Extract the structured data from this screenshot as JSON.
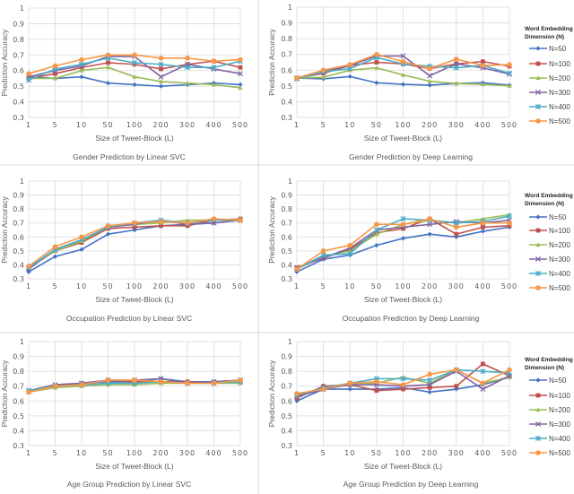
{
  "colors": {
    "N=50": "#4472C4",
    "N=100": "#C0504D",
    "N=200": "#9BBB59",
    "N=300": "#8064A2",
    "N=400": "#4BACC6",
    "N=500": "#F79646"
  },
  "markers": {
    "N=50": "diamond",
    "N=100": "square",
    "N=200": "triangle",
    "N=300": "x",
    "N=400": "asterisk",
    "N=500": "circle"
  },
  "chart_data": [
    {
      "type": "line",
      "title": "Gender Prediction by Linear SVC",
      "xlabel": "Size of Tweet-Block (L)",
      "ylabel": "Prediction Accuracy",
      "categories": [
        "1",
        "5",
        "10",
        "50",
        "100",
        "200",
        "300",
        "400",
        "500"
      ],
      "ylim": [
        0.3,
        1
      ],
      "yticks": [
        "0.3",
        "0.4",
        "0.5",
        "0.6",
        "0.7",
        "0.8",
        "0.9",
        "1"
      ],
      "grid": true,
      "legend": "none",
      "series": [
        {
          "name": "N=50",
          "values": [
            0.56,
            0.55,
            0.56,
            0.52,
            0.51,
            0.5,
            0.51,
            0.52,
            0.51
          ]
        },
        {
          "name": "N=100",
          "values": [
            0.55,
            0.58,
            0.62,
            0.65,
            0.64,
            0.61,
            0.64,
            0.66,
            0.62
          ]
        },
        {
          "name": "N=200",
          "values": [
            0.55,
            0.55,
            0.6,
            0.62,
            0.56,
            0.53,
            0.52,
            0.51,
            0.49
          ]
        },
        {
          "name": "N=300",
          "values": [
            0.56,
            0.6,
            0.63,
            0.69,
            0.69,
            0.56,
            0.64,
            0.61,
            0.58
          ]
        },
        {
          "name": "N=400",
          "values": [
            0.54,
            0.61,
            0.64,
            0.68,
            0.65,
            0.64,
            0.62,
            0.62,
            0.66
          ]
        },
        {
          "name": "N=500",
          "values": [
            0.58,
            0.63,
            0.67,
            0.7,
            0.7,
            0.68,
            0.68,
            0.66,
            0.67
          ]
        }
      ]
    },
    {
      "type": "line",
      "title": "Gender Prediction by Deep Learning",
      "xlabel": "Size of Tweet-Block (L)",
      "ylabel": "Prediction Accuracy",
      "categories": [
        "1",
        "5",
        "10",
        "50",
        "100",
        "200",
        "300",
        "400",
        "500"
      ],
      "ylim": [
        0.3,
        1
      ],
      "yticks": [
        "0.3",
        "0.4",
        "0.5",
        "0.6",
        "0.7",
        "0.8",
        "0.9",
        "1"
      ],
      "grid": true,
      "legend": "right",
      "legend_title": [
        "Word Embedding",
        "Dimension (N)"
      ],
      "series": [
        {
          "name": "N=50",
          "values": [
            0.55,
            0.545,
            0.56,
            0.52,
            0.51,
            0.505,
            0.515,
            0.52,
            0.505
          ]
        },
        {
          "name": "N=100",
          "values": [
            0.55,
            0.58,
            0.63,
            0.65,
            0.64,
            0.61,
            0.64,
            0.655,
            0.625
          ]
        },
        {
          "name": "N=200",
          "values": [
            0.55,
            0.555,
            0.6,
            0.615,
            0.57,
            0.53,
            0.515,
            0.51,
            0.5
          ]
        },
        {
          "name": "N=300",
          "values": [
            0.55,
            0.59,
            0.63,
            0.69,
            0.69,
            0.565,
            0.64,
            0.615,
            0.575
          ]
        },
        {
          "name": "N=400",
          "values": [
            0.545,
            0.59,
            0.61,
            0.68,
            0.64,
            0.625,
            0.615,
            0.63,
            0.58
          ]
        },
        {
          "name": "N=500",
          "values": [
            0.55,
            0.6,
            0.635,
            0.7,
            0.655,
            0.61,
            0.67,
            0.63,
            0.635
          ]
        }
      ]
    },
    {
      "type": "line",
      "title": "Occupation Prediction by Linear SVC",
      "xlabel": "Size of Tweet-Block (L)",
      "ylabel": "Prediction Accuracy",
      "categories": [
        "1",
        "5",
        "10",
        "50",
        "100",
        "200",
        "300",
        "400",
        "500"
      ],
      "ylim": [
        0.3,
        1
      ],
      "yticks": [
        "0.3",
        "0.4",
        "0.5",
        "0.6",
        "0.7",
        "0.8",
        "0.9",
        "1"
      ],
      "grid": true,
      "legend": "none",
      "series": [
        {
          "name": "N=50",
          "values": [
            0.35,
            0.46,
            0.51,
            0.62,
            0.65,
            0.68,
            0.69,
            0.7,
            0.72
          ]
        },
        {
          "name": "N=100",
          "values": [
            0.38,
            0.5,
            0.56,
            0.66,
            0.67,
            0.68,
            0.68,
            0.72,
            0.73
          ]
        },
        {
          "name": "N=200",
          "values": [
            0.38,
            0.5,
            0.57,
            0.67,
            0.69,
            0.7,
            0.72,
            0.72,
            0.73
          ]
        },
        {
          "name": "N=300",
          "values": [
            0.37,
            0.51,
            0.58,
            0.67,
            0.69,
            0.72,
            0.69,
            0.7,
            0.72
          ]
        },
        {
          "name": "N=400",
          "values": [
            0.38,
            0.51,
            0.58,
            0.67,
            0.7,
            0.72,
            0.7,
            0.72,
            0.72
          ]
        },
        {
          "name": "N=500",
          "values": [
            0.39,
            0.53,
            0.6,
            0.68,
            0.7,
            0.71,
            0.7,
            0.73,
            0.72
          ]
        }
      ]
    },
    {
      "type": "line",
      "title": "Occupation Prediction by Deep Learning",
      "xlabel": "Size of Tweet-Block (L)",
      "ylabel": "Prediction Accuracy",
      "categories": [
        "1",
        "5",
        "10",
        "50",
        "100",
        "200",
        "300",
        "400",
        "500"
      ],
      "ylim": [
        0.3,
        1
      ],
      "yticks": [
        "0.3",
        "0.4",
        "0.5",
        "0.6",
        "0.7",
        "0.8",
        "0.9",
        "1"
      ],
      "grid": true,
      "legend": "right",
      "legend_title": [
        "Word Embedding",
        "Dimension (N)"
      ],
      "series": [
        {
          "name": "N=50",
          "values": [
            0.35,
            0.44,
            0.47,
            0.54,
            0.59,
            0.62,
            0.6,
            0.64,
            0.67
          ]
        },
        {
          "name": "N=100",
          "values": [
            0.38,
            0.45,
            0.51,
            0.63,
            0.66,
            0.73,
            0.62,
            0.67,
            0.68
          ]
        },
        {
          "name": "N=200",
          "values": [
            0.37,
            0.46,
            0.5,
            0.62,
            0.69,
            0.72,
            0.7,
            0.73,
            0.76
          ]
        },
        {
          "name": "N=300",
          "values": [
            0.38,
            0.45,
            0.52,
            0.65,
            0.67,
            0.69,
            0.71,
            0.7,
            0.72
          ]
        },
        {
          "name": "N=400",
          "values": [
            0.37,
            0.47,
            0.48,
            0.65,
            0.73,
            0.72,
            0.7,
            0.71,
            0.75
          ]
        },
        {
          "name": "N=500",
          "values": [
            0.37,
            0.5,
            0.54,
            0.69,
            0.69,
            0.73,
            0.67,
            0.7,
            0.7
          ]
        }
      ]
    },
    {
      "type": "line",
      "title": "Age Group Prediction by Linear SVC",
      "xlabel": "Size of Tweet-Block (L)",
      "ylabel": "Prediction Accuracy",
      "categories": [
        "1",
        "5",
        "10",
        "50",
        "100",
        "200",
        "300",
        "400",
        "500"
      ],
      "ylim": [
        0.3,
        1
      ],
      "yticks": [
        "0.3",
        "0.4",
        "0.5",
        "0.6",
        "0.7",
        "0.8",
        "0.9",
        "1"
      ],
      "grid": true,
      "legend": "none",
      "series": [
        {
          "name": "N=50",
          "values": [
            0.67,
            0.7,
            0.72,
            0.73,
            0.73,
            0.75,
            0.73,
            0.73,
            0.74
          ]
        },
        {
          "name": "N=100",
          "values": [
            0.66,
            0.7,
            0.71,
            0.74,
            0.73,
            0.73,
            0.73,
            0.72,
            0.74
          ]
        },
        {
          "name": "N=200",
          "values": [
            0.66,
            0.69,
            0.7,
            0.71,
            0.71,
            0.72,
            0.72,
            0.72,
            0.72
          ]
        },
        {
          "name": "N=300",
          "values": [
            0.67,
            0.71,
            0.72,
            0.74,
            0.74,
            0.75,
            0.72,
            0.73,
            0.74
          ]
        },
        {
          "name": "N=400",
          "values": [
            0.67,
            0.7,
            0.71,
            0.72,
            0.72,
            0.73,
            0.72,
            0.72,
            0.73
          ]
        },
        {
          "name": "N=500",
          "values": [
            0.66,
            0.7,
            0.71,
            0.74,
            0.74,
            0.73,
            0.72,
            0.72,
            0.74
          ]
        }
      ]
    },
    {
      "type": "line",
      "title": "Age Group Prediction by Deep Learning",
      "xlabel": "Size of Tweet-Block (L)",
      "ylabel": "Prediction Accuracy",
      "categories": [
        "1",
        "5",
        "10",
        "50",
        "100",
        "200",
        "300",
        "400",
        "500"
      ],
      "ylim": [
        0.3,
        1
      ],
      "yticks": [
        "0.3",
        "0.4",
        "0.5",
        "0.6",
        "0.7",
        "0.8",
        "0.9",
        "1"
      ],
      "grid": true,
      "legend": "right",
      "legend_title": [
        "Word Embedding",
        "Dimension (N)"
      ],
      "series": [
        {
          "name": "N=50",
          "values": [
            0.6,
            0.68,
            0.68,
            0.68,
            0.69,
            0.66,
            0.68,
            0.71,
            0.76
          ]
        },
        {
          "name": "N=100",
          "values": [
            0.62,
            0.7,
            0.71,
            0.67,
            0.68,
            0.69,
            0.7,
            0.85,
            0.77
          ]
        },
        {
          "name": "N=200",
          "values": [
            0.63,
            0.69,
            0.72,
            0.72,
            0.76,
            0.72,
            0.81,
            0.72,
            0.76
          ]
        },
        {
          "name": "N=300",
          "values": [
            0.63,
            0.68,
            0.71,
            0.71,
            0.7,
            0.71,
            0.8,
            0.68,
            0.77
          ]
        },
        {
          "name": "N=400",
          "values": [
            0.64,
            0.69,
            0.72,
            0.75,
            0.75,
            0.74,
            0.81,
            0.8,
            0.79
          ]
        },
        {
          "name": "N=500",
          "values": [
            0.65,
            0.68,
            0.72,
            0.73,
            0.71,
            0.78,
            0.81,
            0.72,
            0.81
          ]
        }
      ]
    }
  ]
}
